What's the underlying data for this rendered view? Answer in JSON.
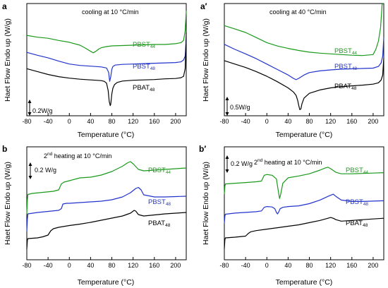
{
  "chart_data": [
    {
      "type": "line",
      "panel_label": "a",
      "annotation": "cooling at 10 °C/min",
      "xlabel": "Temperature (°C)",
      "ylabel": "Haet Flow Endo up (W/g)",
      "xlim": [
        -80,
        220
      ],
      "xticks": [
        -80,
        -40,
        0,
        40,
        80,
        120,
        160,
        200
      ],
      "scale_bar": "0.2W/g",
      "series": [
        {
          "name": "PBST",
          "sub": "44",
          "color": "#1a9a1a",
          "x": [
            -80,
            -60,
            -40,
            -20,
            0,
            20,
            30,
            40,
            45,
            50,
            55,
            60,
            70,
            80,
            100,
            120,
            140,
            160,
            180,
            200,
            210,
            215,
            218,
            220
          ],
          "y": [
            2.12,
            2.07,
            2.04,
            1.98,
            1.93,
            1.85,
            1.77,
            1.68,
            1.64,
            1.68,
            1.74,
            1.78,
            1.81,
            1.83,
            1.84,
            1.85,
            1.86,
            1.87,
            1.87,
            1.89,
            1.92,
            1.98,
            2.25,
            2.8
          ]
        },
        {
          "name": "PBST",
          "sub": "48",
          "color": "#2233cc",
          "x": [
            -80,
            -60,
            -40,
            -20,
            0,
            20,
            40,
            60,
            70,
            74,
            76,
            78,
            80,
            82,
            86,
            100,
            120,
            140,
            160,
            180,
            200,
            210,
            215,
            218,
            220
          ],
          "y": [
            1.65,
            1.57,
            1.5,
            1.41,
            1.33,
            1.29,
            1.27,
            1.25,
            1.22,
            1.1,
            0.85,
            0.98,
            1.18,
            1.26,
            1.3,
            1.32,
            1.33,
            1.34,
            1.35,
            1.36,
            1.37,
            1.39,
            1.44,
            1.55,
            2.0
          ]
        },
        {
          "name": "PBAT",
          "sub": "48",
          "color": "#000000",
          "x": [
            -80,
            -60,
            -40,
            -20,
            0,
            20,
            40,
            60,
            66,
            70,
            73,
            75,
            77,
            78,
            80,
            82,
            85,
            90,
            100,
            120,
            140,
            160,
            180,
            200,
            210,
            215,
            218,
            220
          ],
          "y": [
            1.2,
            1.12,
            1.04,
            0.98,
            0.94,
            0.91,
            0.89,
            0.87,
            0.85,
            0.8,
            0.6,
            0.3,
            0.18,
            0.22,
            0.5,
            0.66,
            0.76,
            0.82,
            0.86,
            0.88,
            0.89,
            0.9,
            0.92,
            0.93,
            0.95,
            0.99,
            1.2,
            2.2
          ]
        }
      ]
    },
    {
      "type": "line",
      "panel_label": "a′",
      "annotation": "cooling at 40 °C/min",
      "xlabel": "Temperature (°C)",
      "ylabel": "Haet Flow Endo up (W/g)",
      "xlim": [
        -80,
        220
      ],
      "xticks": [
        -80,
        -40,
        0,
        40,
        80,
        120,
        160,
        200
      ],
      "scale_bar": "0.5W/g",
      "series": [
        {
          "name": "PBST",
          "sub": "44",
          "color": "#1a9a1a",
          "x": [
            -80,
            -60,
            -40,
            -20,
            0,
            20,
            40,
            60,
            80,
            100,
            120,
            140,
            160,
            180,
            200,
            205,
            210,
            214,
            217,
            220
          ],
          "y": [
            2.65,
            2.55,
            2.45,
            2.3,
            2.15,
            2.05,
            1.98,
            1.92,
            1.87,
            1.84,
            1.82,
            1.8,
            1.78,
            1.77,
            1.8,
            1.95,
            2.2,
            2.6,
            3.3,
            4.5
          ]
        },
        {
          "name": "PBST",
          "sub": "48",
          "color": "#2233cc",
          "x": [
            -80,
            -60,
            -40,
            -20,
            0,
            20,
            40,
            50,
            55,
            60,
            70,
            80,
            100,
            120,
            140,
            160,
            180,
            200,
            210,
            215,
            218,
            220
          ],
          "y": [
            2.1,
            1.95,
            1.82,
            1.68,
            1.52,
            1.36,
            1.2,
            1.1,
            1.06,
            1.1,
            1.2,
            1.27,
            1.32,
            1.35,
            1.37,
            1.38,
            1.39,
            1.4,
            1.45,
            1.55,
            1.75,
            2.3
          ]
        },
        {
          "name": "PBAT",
          "sub": "48",
          "color": "#000000",
          "x": [
            -80,
            -60,
            -40,
            -20,
            0,
            20,
            40,
            50,
            55,
            58,
            60,
            62,
            64,
            66,
            70,
            80,
            100,
            120,
            140,
            160,
            180,
            200,
            210,
            215,
            218,
            220
          ],
          "y": [
            1.62,
            1.52,
            1.42,
            1.3,
            1.16,
            1.0,
            0.82,
            0.7,
            0.6,
            0.45,
            0.3,
            0.18,
            0.2,
            0.35,
            0.52,
            0.66,
            0.76,
            0.82,
            0.86,
            0.88,
            0.9,
            0.93,
            0.97,
            1.05,
            1.2,
            1.7
          ]
        }
      ]
    },
    {
      "type": "line",
      "panel_label": "b",
      "annotation": "2nd heating at 10 °C/min",
      "xlabel": "Temperature (°C)",
      "ylabel": "Haet Flow Endo up (W/g)",
      "xlim": [
        -80,
        220
      ],
      "xticks": [
        -80,
        -40,
        0,
        40,
        80,
        120,
        160,
        200
      ],
      "scale_bar": "0.2 W/g",
      "series": [
        {
          "name": "PBST",
          "sub": "44",
          "color": "#1a9a1a",
          "x": [
            -80,
            -79,
            -78,
            -70,
            -50,
            -30,
            -20,
            -15,
            -10,
            0,
            20,
            40,
            60,
            80,
            100,
            110,
            115,
            120,
            130,
            140,
            160,
            180,
            200,
            220
          ],
          "y": [
            0.7,
            1.1,
            1.25,
            1.28,
            1.31,
            1.34,
            1.38,
            1.55,
            1.6,
            1.64,
            1.72,
            1.74,
            1.8,
            1.9,
            2.05,
            2.15,
            2.18,
            2.12,
            1.96,
            1.92,
            1.94,
            1.96,
            1.98,
            2.0
          ]
        },
        {
          "name": "PBST",
          "sub": "48",
          "color": "#2233cc",
          "x": [
            -80,
            -79,
            -78,
            -60,
            -40,
            -20,
            -15,
            -12,
            -5,
            0,
            20,
            40,
            60,
            80,
            100,
            115,
            125,
            130,
            135,
            140,
            160,
            180,
            200,
            220
          ],
          "y": [
            0.2,
            0.55,
            0.7,
            0.74,
            0.77,
            0.8,
            0.85,
            0.98,
            1.0,
            1.0,
            1.02,
            1.04,
            1.06,
            1.1,
            1.18,
            1.3,
            1.42,
            1.45,
            1.38,
            1.24,
            1.18,
            1.18,
            1.19,
            1.2
          ]
        },
        {
          "name": "PBAT",
          "sub": "48",
          "color": "#000000",
          "x": [
            -80,
            -79,
            -78,
            -60,
            -50,
            -40,
            -35,
            -30,
            -20,
            0,
            20,
            40,
            60,
            80,
            100,
            115,
            122,
            125,
            130,
            140,
            160,
            180,
            200,
            220
          ],
          "y": [
            -0.3,
            -0.05,
            0.0,
            0.02,
            0.05,
            0.1,
            0.22,
            0.28,
            0.32,
            0.37,
            0.41,
            0.46,
            0.52,
            0.58,
            0.64,
            0.72,
            0.8,
            0.78,
            0.68,
            0.64,
            0.67,
            0.7,
            0.72,
            0.74
          ]
        }
      ]
    },
    {
      "type": "line",
      "panel_label": "b′",
      "annotation": "2nd heating at 10 °C/min",
      "xlabel": "Temperature (°C)",
      "ylabel": "Haet Flow Endo up (W/g)",
      "xlim": [
        -80,
        220
      ],
      "xticks": [
        -80,
        -40,
        0,
        40,
        80,
        120,
        160,
        200
      ],
      "scale_bar": "0.2 W/g",
      "series": [
        {
          "name": "PBST",
          "sub": "44",
          "color": "#1a9a1a",
          "x": [
            -80,
            -79,
            -78,
            -60,
            -40,
            -20,
            -10,
            -5,
            0,
            10,
            18,
            22,
            24,
            26,
            30,
            40,
            60,
            80,
            100,
            110,
            115,
            120,
            130,
            140,
            160,
            180,
            200,
            220
          ],
          "y": [
            1.3,
            1.52,
            1.58,
            1.6,
            1.62,
            1.64,
            1.66,
            1.82,
            1.84,
            1.82,
            1.72,
            1.35,
            1.18,
            1.3,
            1.6,
            1.75,
            1.8,
            1.86,
            1.96,
            2.02,
            2.04,
            2.0,
            1.9,
            1.86,
            1.86,
            1.87,
            1.88,
            1.89
          ]
        },
        {
          "name": "PBST",
          "sub": "48",
          "color": "#2233cc",
          "x": [
            -80,
            -79,
            -78,
            -60,
            -40,
            -20,
            -10,
            -5,
            0,
            10,
            15,
            18,
            20,
            22,
            25,
            30,
            40,
            60,
            80,
            100,
            115,
            125,
            130,
            140,
            160,
            180,
            200,
            220
          ],
          "y": [
            0.5,
            0.7,
            0.75,
            0.78,
            0.8,
            0.82,
            0.84,
            0.94,
            0.96,
            0.95,
            0.9,
            0.8,
            0.76,
            0.8,
            0.9,
            0.94,
            0.96,
            0.98,
            1.04,
            1.14,
            1.24,
            1.3,
            1.24,
            1.14,
            1.1,
            1.1,
            1.11,
            1.12
          ]
        },
        {
          "name": "PBAT",
          "sub": "48",
          "color": "#000000",
          "x": [
            -80,
            -79,
            -78,
            -60,
            -40,
            -35,
            -30,
            -20,
            0,
            20,
            40,
            60,
            80,
            100,
            115,
            120,
            125,
            130,
            140,
            160,
            180,
            200,
            220
          ],
          "y": [
            -0.2,
            0.05,
            0.1,
            0.12,
            0.15,
            0.22,
            0.27,
            0.3,
            0.34,
            0.38,
            0.42,
            0.46,
            0.52,
            0.58,
            0.64,
            0.66,
            0.64,
            0.6,
            0.56,
            0.58,
            0.6,
            0.62,
            0.64
          ]
        }
      ]
    }
  ]
}
